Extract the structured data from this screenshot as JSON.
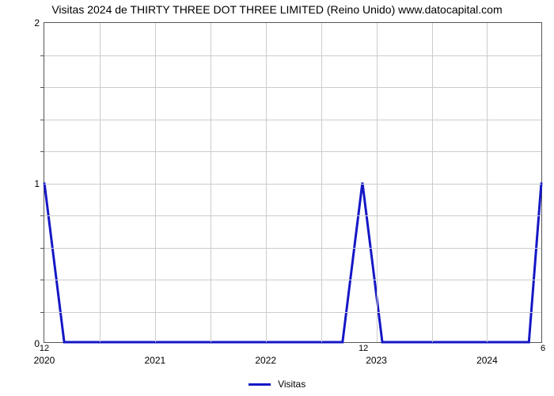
{
  "title": "Visitas 2024 de THIRTY THREE DOT THREE LIMITED (Reino Unido) www.datocapital.com",
  "chart": {
    "type": "line",
    "background_color": "#ffffff",
    "grid_color": "#cccccc",
    "border_color": "#555555",
    "series": {
      "label": "Visitas",
      "color": "#1417c5",
      "line_width": 3,
      "x": [
        0,
        0.04,
        0.6,
        0.64,
        0.68,
        0.975,
        1.0
      ],
      "y": [
        1,
        0,
        0,
        1,
        0,
        0,
        1
      ]
    },
    "x_axis": {
      "min": 0,
      "max": 1,
      "grid_positions": [
        0.0,
        0.111,
        0.222,
        0.333,
        0.444,
        0.555,
        0.666,
        0.777,
        0.888,
        1.0
      ],
      "year_labels": [
        {
          "pos": 0.0,
          "text": "2020"
        },
        {
          "pos": 0.222,
          "text": "2021"
        },
        {
          "pos": 0.444,
          "text": "2022"
        },
        {
          "pos": 0.666,
          "text": "2023"
        },
        {
          "pos": 0.888,
          "text": "2024"
        }
      ],
      "month_labels": [
        {
          "pos": 0.0,
          "text": "12"
        },
        {
          "pos": 0.64,
          "text": "12"
        },
        {
          "pos": 1.0,
          "text": "6"
        }
      ]
    },
    "y_axis": {
      "min": 0,
      "max": 2,
      "major_ticks": [
        0,
        1,
        2
      ],
      "minor_count_between": 4,
      "grid_positions": [
        0,
        0.1,
        0.2,
        0.3,
        0.4,
        0.5,
        0.6,
        0.7,
        0.8,
        0.9,
        1.0
      ]
    },
    "title_fontsize": 14,
    "tick_fontsize": 12,
    "legend_position": "bottom-center"
  }
}
